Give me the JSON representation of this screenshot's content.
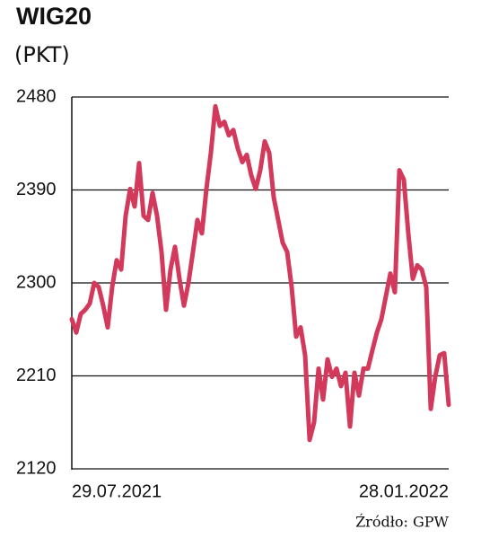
{
  "chart_data": {
    "type": "line",
    "title": "WIG20",
    "subtitle": "(PKT)",
    "source": "Źródło: GPW",
    "categories": [
      "29.07.2021",
      null,
      null,
      null,
      null,
      null,
      null,
      null,
      null,
      null,
      null,
      null,
      null,
      null,
      null,
      null,
      null,
      null,
      null,
      null,
      null,
      null,
      null,
      null,
      null,
      null,
      null,
      null,
      null,
      null,
      null,
      null,
      null,
      null,
      null,
      null,
      null,
      null,
      null,
      null,
      null,
      null,
      null,
      null,
      null,
      null,
      null,
      null,
      null,
      null,
      null,
      null,
      null,
      null,
      null,
      null,
      null,
      null,
      null,
      null,
      null,
      null,
      null,
      null,
      null,
      null,
      null,
      null,
      null,
      null,
      null,
      null,
      null,
      null,
      null,
      null,
      null,
      null,
      null,
      null,
      null,
      null,
      null,
      null,
      "28.01.2022"
    ],
    "values": [
      2265,
      2252,
      2270,
      2274,
      2280,
      2300,
      2296,
      2278,
      2257,
      2296,
      2322,
      2313,
      2365,
      2391,
      2374,
      2416,
      2365,
      2361,
      2387,
      2365,
      2330,
      2274,
      2313,
      2335,
      2304,
      2278,
      2300,
      2330,
      2361,
      2348,
      2391,
      2426,
      2471,
      2452,
      2456,
      2443,
      2448,
      2430,
      2417,
      2424,
      2404,
      2391,
      2409,
      2437,
      2426,
      2383,
      2361,
      2339,
      2330,
      2296,
      2248,
      2257,
      2230,
      2148,
      2165,
      2217,
      2187,
      2226,
      2209,
      2217,
      2200,
      2213,
      2161,
      2213,
      2191,
      2217,
      2217,
      2235,
      2252,
      2265,
      2287,
      2309,
      2291,
      2409,
      2400,
      2348,
      2304,
      2317,
      2313,
      2296,
      2178,
      2209,
      2230,
      2232,
      2182
    ],
    "color": "#d2395b",
    "ylim": [
      2120,
      2480
    ],
    "yticks": [
      2120,
      2210,
      2300,
      2390,
      2480
    ],
    "grid": true
  }
}
